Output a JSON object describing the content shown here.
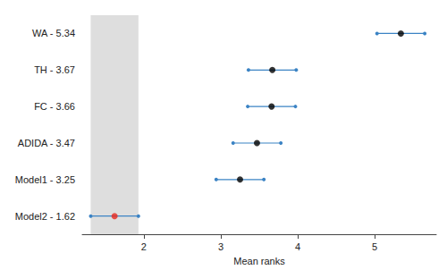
{
  "chart_data": {
    "type": "dot_interval",
    "x_label": "Mean ranks",
    "categories": [
      "WA - 5.34",
      "TH - 3.67",
      "FC - 3.66",
      "ADIDA - 3.47",
      "Model1 - 3.25",
      "Model2 - 1.62"
    ],
    "values": [
      5.34,
      3.67,
      3.66,
      3.47,
      3.25,
      1.62
    ],
    "lower": [
      5.03,
      3.36,
      3.35,
      3.16,
      2.94,
      1.31
    ],
    "upper": [
      5.65,
      3.98,
      3.97,
      3.78,
      3.56,
      1.93
    ],
    "colors": [
      "#000000",
      "#000000",
      "#000000",
      "#000000",
      "#000000",
      "#e8281e"
    ],
    "color": "#3b83c4",
    "shaded_range": [
      1.31,
      1.93
    ],
    "xlim": [
      1.2,
      5.8
    ],
    "xticks": [
      2,
      3,
      4,
      5
    ],
    "grid": false
  }
}
